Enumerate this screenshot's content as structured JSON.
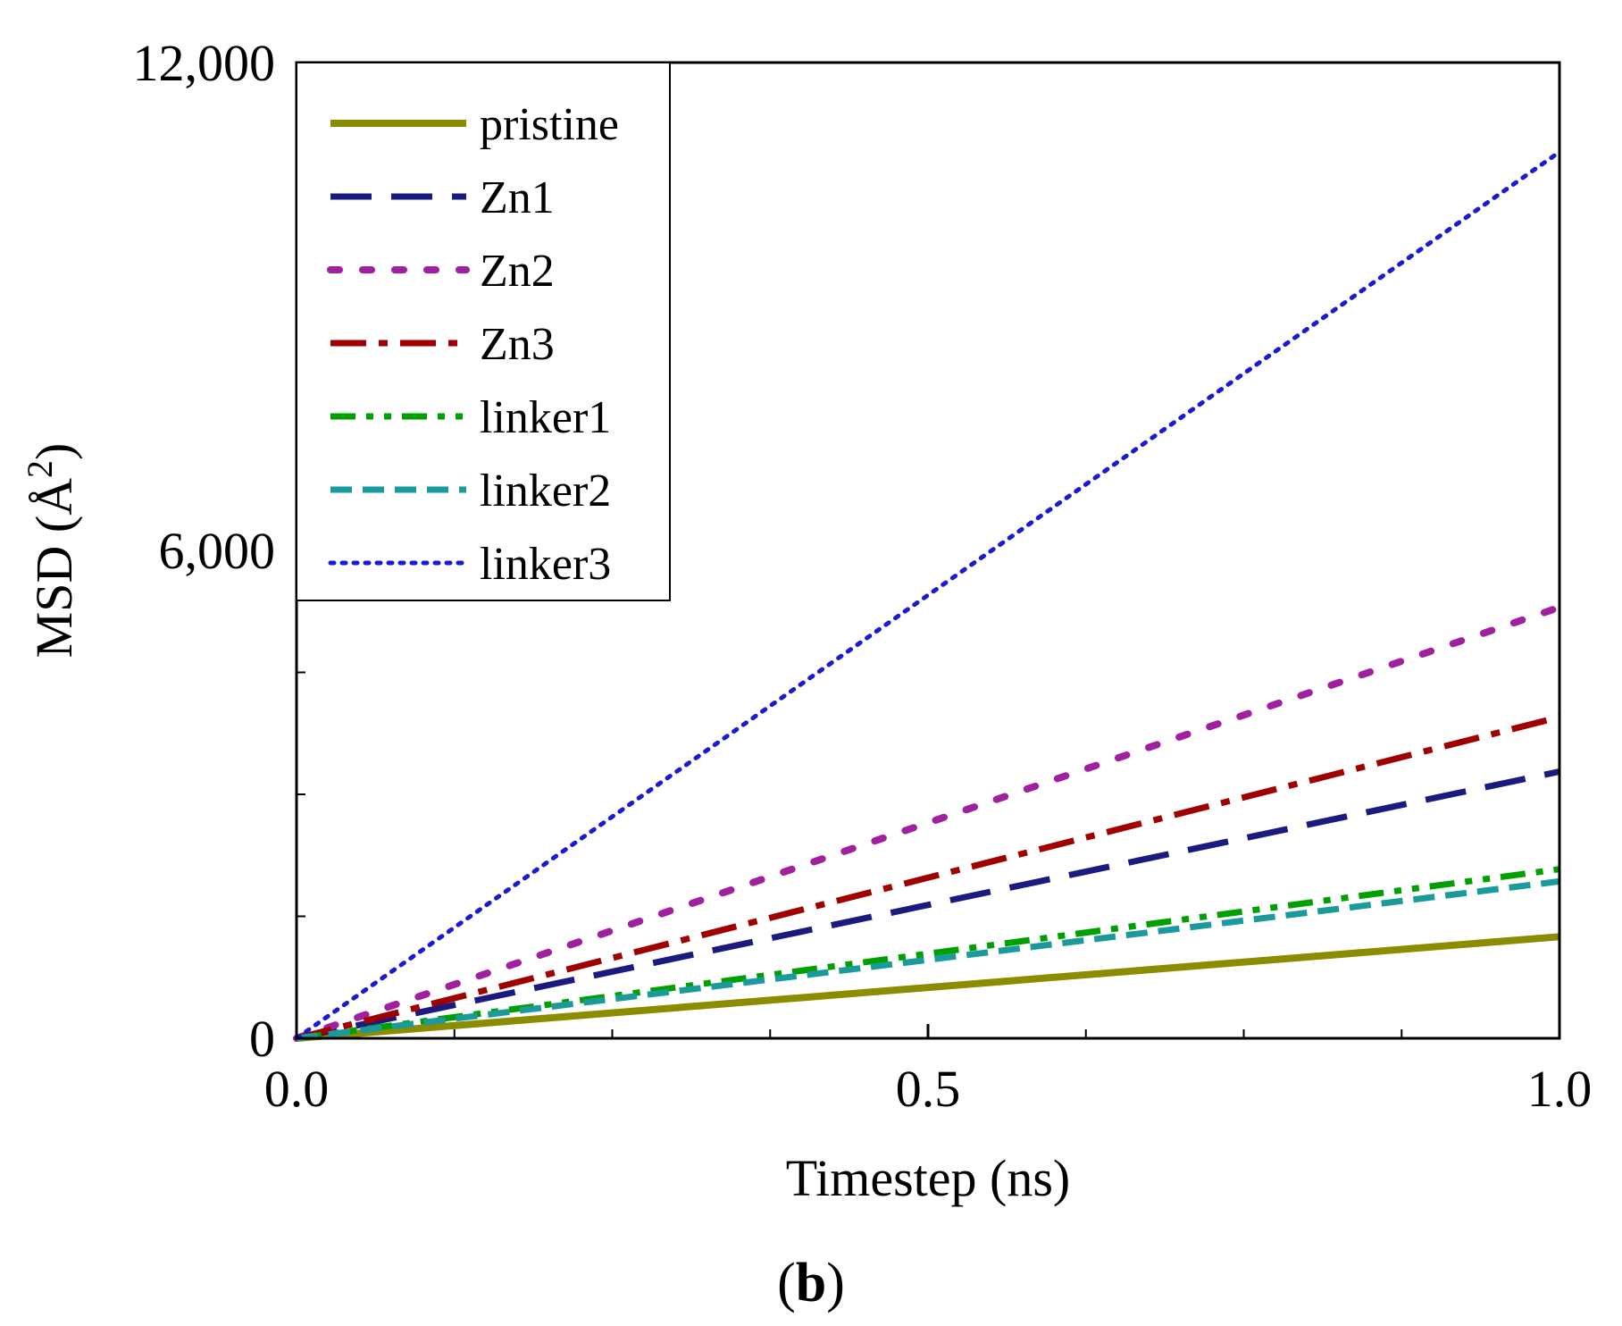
{
  "chart_data": {
    "type": "line",
    "title": "",
    "xlabel": "Timestep (ns)",
    "ylabel": "MSD (Å²)",
    "ylabel_base": "MSD (Å",
    "ylabel_sup": "2",
    "ylabel_close": ")",
    "panel_label": "b",
    "xlim": [
      0,
      1.0
    ],
    "ylim": [
      0,
      12000
    ],
    "x_ticks": [
      {
        "value": 0.0,
        "label": "0.0"
      },
      {
        "value": 0.5,
        "label": "0.5"
      },
      {
        "value": 1.0,
        "label": "1.0"
      }
    ],
    "x_minor_ticks": [
      0.125,
      0.25,
      0.375,
      0.625,
      0.75,
      0.875
    ],
    "y_ticks": [
      {
        "value": 0,
        "label": "0"
      },
      {
        "value": 6000,
        "label": "6,000"
      },
      {
        "value": 12000,
        "label": "12,000"
      }
    ],
    "y_minor_ticks": [
      1500,
      3000,
      4500,
      7500,
      9000,
      10500
    ],
    "legend_position": "top-left",
    "series": [
      {
        "name": "pristine",
        "color": "#8c8c00",
        "dash": "solid",
        "x": [
          0,
          1.0
        ],
        "y": [
          0,
          1250
        ]
      },
      {
        "name": "Zn1",
        "color": "#1a1a80",
        "dash": "dash",
        "x": [
          0,
          1.0
        ],
        "y": [
          0,
          3280
        ]
      },
      {
        "name": "Zn2",
        "color": "#a020a0",
        "dash": "dot",
        "x": [
          0,
          1.0
        ],
        "y": [
          0,
          5300
        ]
      },
      {
        "name": "Zn3",
        "color": "#a00000",
        "dash": "dashdot",
        "x": [
          0,
          1.0
        ],
        "y": [
          0,
          3950
        ]
      },
      {
        "name": "linker1",
        "color": "#00a000",
        "dash": "dashdotdot",
        "x": [
          0,
          1.0
        ],
        "y": [
          0,
          2080
        ]
      },
      {
        "name": "linker2",
        "color": "#1a9a9a",
        "dash": "shortdash",
        "x": [
          0,
          1.0
        ],
        "y": [
          0,
          1930
        ]
      },
      {
        "name": "linker3",
        "color": "#1a1ad0",
        "dash": "finedot",
        "x": [
          0,
          1.0
        ],
        "y": [
          0,
          10900
        ]
      }
    ]
  }
}
